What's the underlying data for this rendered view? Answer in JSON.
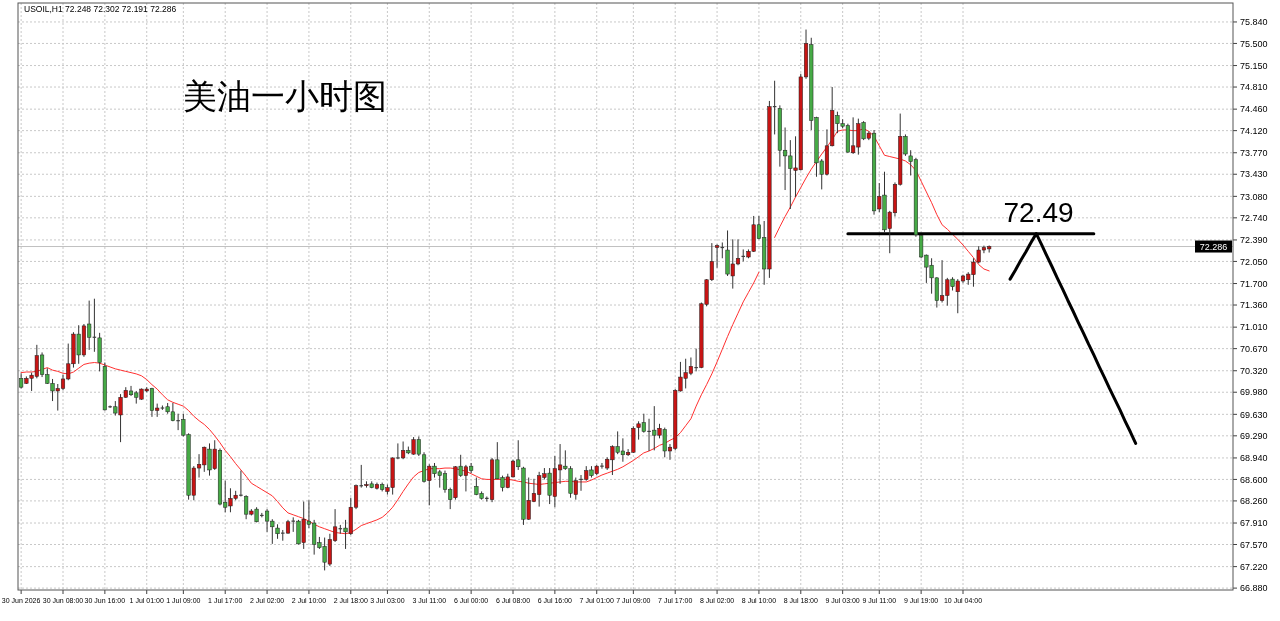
{
  "chart_data": {
    "type": "candlestick",
    "title": "美油一小时图",
    "annotations": [
      "USOIL,H1  72.248 72.302 72.191 72.286",
      {
        "text": "72.49",
        "y": 72.49
      }
    ],
    "categories": [
      "30 Jun 2026",
      null,
      null,
      null,
      null,
      null,
      null,
      null,
      "30 Jun 08:00",
      null,
      null,
      null,
      null,
      null,
      null,
      null,
      "30 Jun 16:00",
      null,
      null,
      null,
      null,
      null,
      null,
      null,
      "1 Jul 01:00",
      null,
      null,
      null,
      null,
      null,
      null,
      "1 Jul 09:00",
      null,
      null,
      null,
      null,
      null,
      null,
      null,
      "1 Jul 17:00",
      null,
      null,
      null,
      null,
      null,
      null,
      null,
      "2 Jul 02:00",
      null,
      null,
      null,
      null,
      null,
      null,
      null,
      "2 Jul 10:00",
      null,
      null,
      null,
      null,
      null,
      null,
      null,
      "2 Jul 18:00",
      null,
      null,
      null,
      null,
      null,
      null,
      "3 Jul 03:00",
      null,
      null,
      null,
      null,
      null,
      null,
      null,
      "3 Jul 11:00",
      null,
      null,
      null,
      null,
      null,
      null,
      null,
      "6 Jul 00:00",
      null,
      null,
      null,
      null,
      null,
      null,
      null,
      "6 Jul 08:00",
      null,
      null,
      null,
      null,
      null,
      null,
      null,
      "6 Jul 16:00",
      null,
      null,
      null,
      null,
      null,
      null,
      null,
      "7 Jul 01:00",
      null,
      null,
      null,
      null,
      null,
      null,
      "7 Jul 09:00",
      null,
      null,
      null,
      null,
      null,
      null,
      null,
      "7 Jul 17:00",
      null,
      null,
      null,
      null,
      null,
      null,
      null,
      "8 Jul 02:00",
      null,
      null,
      null,
      null,
      null,
      null,
      null,
      "8 Jul 10:00",
      null,
      null,
      null,
      null,
      null,
      null,
      null,
      "8 Jul 18:00",
      null,
      null,
      null,
      null,
      null,
      null,
      null,
      "9 Jul 03:00",
      null,
      null,
      null,
      null,
      null,
      null,
      "9 Jul 11:00",
      null,
      null,
      null,
      null,
      null,
      null,
      null,
      "9 Jul 19:00",
      null,
      null,
      null,
      null,
      null,
      null,
      null,
      "10 Jul 04:00",
      null,
      null,
      null,
      null,
      null,
      null,
      null,
      null,
      null,
      null,
      null,
      null,
      null,
      null,
      null,
      null,
      null,
      null,
      null,
      null,
      null,
      null,
      null,
      null,
      null,
      null,
      null,
      null,
      null,
      null,
      null,
      null,
      null,
      null,
      null,
      null,
      null,
      null,
      null,
      null,
      null,
      null,
      null,
      null,
      null,
      null,
      null,
      null,
      null,
      null,
      null
    ],
    "ohlc": [
      [
        70.2,
        70.28,
        70.04,
        70.06
      ],
      [
        70.12,
        70.23,
        70.11,
        70.2
      ],
      [
        70.2,
        70.29,
        70.0,
        70.25
      ],
      [
        70.23,
        70.73,
        70.2,
        70.56
      ],
      [
        70.57,
        70.61,
        70.22,
        70.26
      ],
      [
        70.26,
        70.36,
        70.11,
        70.12
      ],
      [
        70.12,
        70.19,
        69.84,
        70.0
      ],
      [
        70.0,
        70.11,
        69.69,
        70.04
      ],
      [
        70.04,
        70.26,
        70.01,
        70.19
      ],
      [
        70.19,
        70.75,
        70.17,
        70.43
      ],
      [
        70.43,
        70.93,
        70.37,
        70.9
      ],
      [
        70.9,
        71.04,
        70.43,
        70.57
      ],
      [
        70.57,
        71.06,
        70.54,
        71.03
      ],
      [
        71.06,
        71.43,
        70.65,
        70.85
      ],
      [
        70.85,
        71.46,
        70.62,
        70.85
      ],
      [
        70.84,
        70.92,
        70.31,
        70.45
      ],
      [
        70.39,
        70.45,
        69.69,
        69.7
      ],
      [
        69.75,
        69.77,
        69.73,
        69.75
      ],
      [
        69.75,
        69.84,
        69.61,
        69.65
      ],
      [
        69.62,
        69.95,
        69.19,
        69.9
      ],
      [
        69.9,
        70.06,
        69.89,
        70.01
      ],
      [
        70.0,
        70.08,
        69.92,
        69.94
      ],
      [
        69.97,
        70.0,
        69.8,
        69.9
      ],
      [
        69.87,
        70.04,
        69.86,
        70.03
      ],
      [
        70.0,
        70.06,
        69.98,
        70.03
      ],
      [
        70.04,
        70.05,
        69.59,
        69.69
      ],
      [
        69.69,
        69.8,
        69.59,
        69.73
      ],
      [
        69.73,
        69.77,
        69.7,
        69.73
      ],
      [
        69.75,
        69.81,
        69.64,
        69.67
      ],
      [
        69.67,
        69.81,
        69.52,
        69.53
      ],
      [
        69.53,
        69.64,
        69.38,
        69.53
      ],
      [
        69.55,
        69.64,
        69.28,
        69.3
      ],
      [
        69.31,
        69.33,
        68.28,
        68.35
      ],
      [
        68.35,
        68.81,
        68.27,
        68.78
      ],
      [
        68.78,
        69.0,
        68.63,
        68.84
      ],
      [
        68.83,
        69.12,
        68.72,
        69.11
      ],
      [
        69.08,
        69.17,
        68.66,
        68.75
      ],
      [
        68.77,
        69.22,
        68.75,
        69.08
      ],
      [
        69.06,
        69.09,
        68.19,
        68.21
      ],
      [
        68.24,
        68.58,
        68.08,
        68.16
      ],
      [
        68.18,
        68.46,
        68.08,
        68.3
      ],
      [
        68.3,
        68.42,
        68.27,
        68.35
      ],
      [
        68.35,
        68.74,
        68.33,
        68.35
      ],
      [
        68.33,
        68.35,
        67.97,
        68.05
      ],
      [
        68.05,
        68.13,
        68.03,
        68.1
      ],
      [
        68.13,
        68.16,
        67.92,
        67.93
      ],
      [
        68.03,
        68.07,
        68.0,
        68.03
      ],
      [
        68.1,
        68.13,
        67.77,
        67.94
      ],
      [
        67.94,
        67.97,
        67.58,
        67.85
      ],
      [
        67.83,
        67.89,
        67.66,
        67.74
      ],
      [
        67.75,
        67.8,
        67.63,
        67.75
      ],
      [
        67.75,
        67.96,
        67.74,
        67.93
      ],
      [
        67.94,
        68.0,
        67.77,
        67.94
      ],
      [
        67.94,
        67.96,
        67.57,
        67.58
      ],
      [
        67.6,
        68.25,
        67.5,
        67.97
      ],
      [
        67.94,
        68.27,
        67.83,
        67.89
      ],
      [
        67.91,
        67.96,
        67.41,
        67.57
      ],
      [
        67.6,
        67.69,
        67.5,
        67.52
      ],
      [
        67.54,
        67.68,
        67.16,
        67.29
      ],
      [
        67.26,
        67.74,
        67.23,
        67.65
      ],
      [
        67.63,
        68.13,
        67.61,
        67.85
      ],
      [
        67.82,
        67.88,
        67.74,
        67.82
      ],
      [
        67.83,
        67.96,
        67.5,
        67.77
      ],
      [
        67.74,
        68.31,
        67.72,
        68.16
      ],
      [
        68.16,
        68.52,
        68.13,
        68.5
      ],
      [
        68.5,
        68.83,
        68.47,
        68.5
      ],
      [
        68.5,
        68.57,
        68.47,
        68.52
      ],
      [
        68.53,
        68.57,
        68.46,
        68.47
      ],
      [
        68.46,
        68.55,
        68.44,
        68.52
      ],
      [
        68.52,
        68.55,
        68.41,
        68.44
      ],
      [
        68.41,
        68.52,
        68.36,
        68.47
      ],
      [
        68.47,
        68.95,
        68.36,
        68.94
      ],
      [
        68.94,
        69.17,
        68.92,
        68.94
      ],
      [
        68.94,
        69.2,
        68.92,
        69.06
      ],
      [
        69.06,
        69.12,
        69.0,
        69.02
      ],
      [
        69.0,
        69.27,
        68.99,
        69.23
      ],
      [
        69.23,
        69.28,
        68.97,
        69.0
      ],
      [
        68.99,
        69.03,
        68.55,
        68.57
      ],
      [
        68.58,
        68.84,
        68.19,
        68.81
      ],
      [
        68.81,
        68.86,
        68.63,
        68.69
      ],
      [
        68.72,
        68.75,
        68.47,
        68.66
      ],
      [
        68.69,
        68.74,
        68.39,
        68.44
      ],
      [
        68.44,
        68.47,
        68.13,
        68.28
      ],
      [
        68.31,
        68.81,
        68.28,
        68.8
      ],
      [
        68.81,
        68.99,
        68.64,
        68.66
      ],
      [
        68.66,
        68.83,
        68.41,
        68.8
      ],
      [
        68.81,
        68.86,
        68.7,
        68.74
      ],
      [
        68.49,
        68.63,
        68.35,
        68.36
      ],
      [
        68.38,
        68.41,
        68.28,
        68.3
      ],
      [
        68.3,
        68.33,
        68.25,
        68.3
      ],
      [
        68.28,
        68.94,
        68.24,
        68.91
      ],
      [
        68.91,
        69.19,
        68.6,
        68.61
      ],
      [
        68.63,
        68.66,
        68.41,
        68.47
      ],
      [
        68.47,
        68.69,
        68.46,
        68.64
      ],
      [
        68.64,
        68.91,
        68.63,
        68.89
      ],
      [
        68.91,
        69.22,
        68.75,
        68.8
      ],
      [
        68.78,
        68.8,
        67.88,
        67.97
      ],
      [
        67.97,
        68.63,
        67.96,
        68.27
      ],
      [
        68.25,
        68.61,
        68.24,
        68.38
      ],
      [
        68.36,
        68.72,
        68.17,
        68.66
      ],
      [
        68.63,
        68.78,
        68.6,
        68.69
      ],
      [
        68.7,
        68.78,
        68.21,
        68.35
      ],
      [
        68.33,
        68.97,
        68.16,
        68.77
      ],
      [
        68.75,
        69.16,
        68.53,
        68.83
      ],
      [
        68.81,
        69.06,
        68.75,
        68.77
      ],
      [
        68.77,
        68.81,
        68.31,
        68.38
      ],
      [
        68.36,
        68.63,
        68.28,
        68.58
      ],
      [
        68.6,
        68.67,
        68.42,
        68.6
      ],
      [
        68.6,
        68.81,
        68.58,
        68.74
      ],
      [
        68.75,
        68.81,
        68.63,
        68.66
      ],
      [
        68.69,
        68.83,
        68.67,
        68.81
      ],
      [
        68.81,
        68.86,
        68.77,
        68.81
      ],
      [
        68.78,
        68.95,
        68.75,
        68.92
      ],
      [
        68.91,
        69.14,
        68.67,
        69.12
      ],
      [
        69.12,
        69.36,
        69.0,
        69.03
      ],
      [
        69.05,
        69.25,
        68.88,
        68.99
      ],
      [
        68.99,
        69.08,
        68.97,
        69.03
      ],
      [
        69.03,
        69.44,
        69.02,
        69.41
      ],
      [
        69.42,
        69.52,
        69.23,
        69.48
      ],
      [
        69.5,
        69.64,
        69.34,
        69.36
      ],
      [
        69.36,
        69.56,
        69.05,
        69.36
      ],
      [
        69.38,
        69.76,
        69.06,
        69.3
      ],
      [
        69.3,
        69.48,
        69.25,
        69.41
      ],
      [
        69.39,
        69.42,
        68.95,
        69.05
      ],
      [
        69.05,
        69.16,
        68.91,
        69.11
      ],
      [
        69.09,
        70.03,
        69.06,
        70.01
      ],
      [
        70.0,
        70.46,
        69.99,
        70.22
      ],
      [
        70.2,
        70.51,
        70.04,
        70.29
      ],
      [
        70.28,
        70.53,
        70.25,
        70.39
      ],
      [
        70.37,
        70.67,
        70.31,
        70.37
      ],
      [
        70.37,
        71.4,
        70.36,
        71.38
      ],
      [
        71.37,
        71.77,
        71.34,
        71.76
      ],
      [
        71.76,
        72.34,
        71.74,
        72.05
      ],
      [
        72.27,
        72.32,
        71.95,
        72.3
      ],
      [
        72.27,
        72.35,
        72.1,
        72.27
      ],
      [
        72.23,
        72.54,
        71.82,
        71.85
      ],
      [
        71.82,
        72.4,
        71.62,
        72.01
      ],
      [
        72.01,
        72.4,
        71.99,
        72.1
      ],
      [
        72.13,
        72.24,
        72.05,
        72.13
      ],
      [
        72.12,
        72.24,
        72.1,
        72.21
      ],
      [
        72.21,
        72.77,
        72.2,
        72.63
      ],
      [
        72.63,
        72.77,
        72.4,
        72.41
      ],
      [
        72.43,
        72.69,
        71.68,
        71.93
      ],
      [
        71.93,
        74.59,
        71.79,
        74.5
      ],
      [
        74.5,
        74.91,
        74.06,
        74.5
      ],
      [
        74.47,
        74.52,
        73.55,
        73.81
      ],
      [
        73.81,
        74.17,
        73.18,
        73.72
      ],
      [
        73.72,
        73.97,
        72.88,
        73.52
      ],
      [
        73.49,
        74.03,
        73.07,
        73.53
      ],
      [
        73.5,
        75.02,
        73.49,
        74.97
      ],
      [
        74.97,
        75.72,
        74.94,
        75.5
      ],
      [
        75.48,
        75.59,
        74.13,
        74.28
      ],
      [
        74.33,
        74.34,
        73.39,
        73.61
      ],
      [
        73.64,
        73.67,
        73.19,
        73.43
      ],
      [
        73.43,
        74.14,
        73.41,
        73.88
      ],
      [
        73.88,
        74.81,
        73.87,
        74.44
      ],
      [
        74.36,
        74.42,
        74.08,
        74.23
      ],
      [
        74.23,
        74.3,
        74.16,
        74.19
      ],
      [
        74.2,
        74.23,
        73.77,
        73.78
      ],
      [
        73.77,
        74.33,
        73.75,
        73.88
      ],
      [
        73.86,
        74.31,
        73.74,
        74.23
      ],
      [
        74.25,
        74.27,
        73.97,
        73.99
      ],
      [
        74.0,
        74.11,
        73.97,
        74.08
      ],
      [
        74.08,
        74.13,
        72.79,
        72.85
      ],
      [
        72.88,
        73.29,
        72.83,
        73.08
      ],
      [
        73.1,
        73.47,
        72.51,
        72.55
      ],
      [
        72.57,
        72.85,
        72.18,
        72.83
      ],
      [
        72.82,
        73.3,
        72.76,
        73.27
      ],
      [
        73.27,
        74.39,
        73.25,
        74.03
      ],
      [
        74.03,
        74.06,
        73.72,
        73.75
      ],
      [
        73.72,
        73.81,
        73.41,
        73.63
      ],
      [
        73.66,
        73.69,
        72.44,
        72.47
      ],
      [
        72.46,
        72.47,
        72.1,
        72.12
      ],
      [
        72.15,
        72.16,
        71.71,
        71.96
      ],
      [
        71.99,
        72.1,
        71.54,
        71.79
      ],
      [
        71.79,
        71.8,
        71.32,
        71.43
      ],
      [
        71.43,
        72.07,
        71.4,
        71.51
      ],
      [
        71.51,
        71.79,
        71.35,
        71.76
      ],
      [
        71.77,
        71.8,
        71.59,
        71.65
      ],
      [
        71.57,
        71.77,
        71.23,
        71.74
      ],
      [
        71.74,
        71.84,
        71.71,
        71.82
      ],
      [
        71.76,
        71.88,
        71.68,
        71.85
      ],
      [
        71.84,
        72.1,
        71.65,
        72.04
      ],
      [
        72.04,
        72.29,
        72.02,
        72.23
      ],
      [
        72.23,
        72.3,
        72.18,
        72.27
      ],
      [
        72.248,
        72.302,
        72.191,
        72.286
      ],
      null,
      null,
      null,
      null,
      null,
      null,
      null,
      null,
      null,
      null,
      null,
      null,
      null,
      null,
      null,
      null,
      null,
      null,
      null,
      null,
      null,
      null,
      null,
      null,
      null,
      null,
      null,
      null,
      null,
      null,
      null,
      null,
      null,
      null,
      null,
      null,
      null,
      null,
      null,
      null,
      null,
      null,
      null,
      null,
      null,
      null
    ],
    "colors": [
      "#46aa46",
      "#c81414",
      "#c81414",
      "#c81414",
      "#46aa46",
      "#46aa46",
      "#46aa46",
      "#c81414",
      "#c81414",
      "#c81414",
      "#c81414",
      "#46aa46",
      "#c81414",
      "#46aa46",
      "#404040",
      "#46aa46",
      "#46aa46",
      "#404040",
      "#46aa46",
      "#c81414",
      "#c81414",
      "#46aa46",
      "#46aa46",
      "#c81414",
      "#c81414",
      "#46aa46",
      "#c81414",
      "#404040",
      "#46aa46",
      "#46aa46",
      "#404040",
      "#46aa46",
      "#46aa46",
      "#c81414",
      "#c81414",
      "#c81414",
      "#46aa46",
      "#c81414",
      "#46aa46",
      "#46aa46",
      "#c81414",
      "#c81414",
      "#404040",
      "#46aa46",
      "#c81414",
      "#46aa46",
      "#404040",
      "#46aa46",
      "#46aa46",
      "#46aa46",
      "#404040",
      "#c81414",
      "#404040",
      "#46aa46",
      "#c81414",
      "#46aa46",
      "#46aa46",
      "#46aa46",
      "#46aa46",
      "#c81414",
      "#c81414",
      "#404040",
      "#46aa46",
      "#c81414",
      "#c81414",
      "#404040",
      "#c81414",
      "#46aa46",
      "#c81414",
      "#46aa46",
      "#c81414",
      "#c81414",
      "#404040",
      "#c81414",
      "#46aa46",
      "#c81414",
      "#46aa46",
      "#46aa46",
      "#c81414",
      "#46aa46",
      "#46aa46",
      "#46aa46",
      "#46aa46",
      "#c81414",
      "#46aa46",
      "#c81414",
      "#46aa46",
      "#46aa46",
      "#46aa46",
      "#404040",
      "#c81414",
      "#46aa46",
      "#46aa46",
      "#c81414",
      "#c81414",
      "#46aa46",
      "#46aa46",
      "#c81414",
      "#c81414",
      "#c81414",
      "#c81414",
      "#46aa46",
      "#c81414",
      "#c81414",
      "#46aa46",
      "#46aa46",
      "#c81414",
      "#404040",
      "#c81414",
      "#46aa46",
      "#c81414",
      "#404040",
      "#c81414",
      "#c81414",
      "#46aa46",
      "#46aa46",
      "#c81414",
      "#c81414",
      "#c81414",
      "#46aa46",
      "#404040",
      "#46aa46",
      "#c81414",
      "#46aa46",
      "#c81414",
      "#c81414",
      "#c81414",
      "#c81414",
      "#c81414",
      "#404040",
      "#c81414",
      "#c81414",
      "#c81414",
      "#c81414",
      "#404040",
      "#46aa46",
      "#c81414",
      "#c81414",
      "#404040",
      "#c81414",
      "#c81414",
      "#46aa46",
      "#46aa46",
      "#c81414",
      "#404040",
      "#46aa46",
      "#46aa46",
      "#46aa46",
      "#c81414",
      "#c81414",
      "#c81414",
      "#46aa46",
      "#46aa46",
      "#46aa46",
      "#c81414",
      "#c81414",
      "#46aa46",
      "#46aa46",
      "#46aa46",
      "#c81414",
      "#c81414",
      "#46aa46",
      "#c81414",
      "#46aa46",
      "#c81414",
      "#46aa46",
      "#c81414",
      "#c81414",
      "#c81414",
      "#46aa46",
      "#46aa46",
      "#46aa46",
      "#46aa46",
      "#46aa46",
      "#46aa46",
      "#46aa46",
      "#c81414",
      "#c81414",
      "#46aa46",
      "#c81414",
      "#c81414",
      "#c81414",
      "#c81414",
      "#c81414",
      "#c81414",
      "#c81414",
      null,
      null,
      null,
      null,
      null,
      null,
      null,
      null,
      null,
      null,
      null,
      null,
      null,
      null,
      null,
      null,
      null,
      null,
      null,
      null,
      null,
      null,
      null,
      null,
      null,
      null,
      null,
      null,
      null,
      null,
      null,
      null,
      null,
      null,
      null,
      null,
      null,
      null,
      null,
      null,
      null,
      null,
      null,
      null,
      null,
      null
    ],
    "series": [
      {
        "type": "line",
        "color": "#ff3030",
        "values": [
          70.29,
          70.3,
          70.3,
          70.31,
          70.34,
          70.37,
          70.33,
          70.31,
          70.28,
          70.27,
          70.3,
          70.36,
          70.42,
          70.44,
          70.45,
          70.44,
          70.41,
          70.38,
          70.35,
          70.33,
          70.31,
          70.29,
          70.27,
          70.24,
          70.18,
          70.1,
          70.03,
          69.94,
          69.86,
          69.82,
          69.79,
          69.76,
          69.69,
          69.6,
          69.53,
          69.47,
          69.39,
          69.29,
          69.18,
          69.06,
          68.96,
          68.85,
          68.75,
          68.65,
          68.54,
          68.49,
          68.44,
          68.39,
          68.34,
          68.25,
          68.15,
          68.07,
          68.04,
          68.01,
          67.98,
          67.94,
          67.89,
          67.85,
          67.82,
          67.79,
          67.76,
          67.75,
          67.74,
          67.76,
          67.81,
          67.87,
          67.9,
          67.93,
          67.96,
          68.0,
          68.07,
          68.16,
          68.28,
          68.41,
          68.53,
          68.64,
          68.71,
          68.74,
          68.77,
          68.77,
          68.77,
          68.78,
          68.78,
          68.77,
          68.75,
          68.73,
          68.69,
          68.65,
          68.61,
          68.6,
          68.6,
          68.6,
          68.6,
          68.6,
          68.59,
          68.57,
          68.56,
          68.54,
          68.53,
          68.52,
          68.53,
          68.54,
          68.55,
          68.56,
          68.57,
          68.57,
          68.56,
          68.56,
          68.56,
          68.59,
          68.63,
          68.67,
          68.7,
          68.73,
          68.76,
          68.8,
          68.85,
          68.9,
          68.96,
          69.02,
          69.05,
          69.09,
          69.14,
          69.17,
          69.22,
          69.26,
          69.34,
          69.45,
          69.56,
          69.76,
          69.94,
          70.1,
          70.27,
          70.46,
          70.66,
          70.86,
          71.05,
          71.23,
          71.41,
          71.56,
          71.71,
          71.88,
          null,
          null,
          72.43,
          72.6,
          72.76,
          72.91,
          73.07,
          73.22,
          73.37,
          73.51,
          73.63,
          73.75,
          73.86,
          73.98,
          74.11,
          74.13,
          74.13,
          74.12,
          74.12,
          74.15,
          74.11,
          74.03,
          73.88,
          73.73,
          73.71,
          73.69,
          73.67,
          73.64,
          73.58,
          73.49,
          73.32,
          73.15,
          72.98,
          72.79,
          72.63,
          72.56,
          72.48,
          72.4,
          72.31,
          72.21,
          72.11,
          72.0,
          71.93,
          71.9,
          null,
          null,
          null,
          null,
          null,
          null,
          null,
          null,
          null,
          null,
          null,
          null,
          null,
          null,
          null,
          null,
          null,
          null,
          null,
          null,
          null,
          null,
          null,
          null,
          null,
          null,
          null,
          null,
          null,
          null,
          null,
          null,
          null,
          null,
          null,
          null,
          null,
          null,
          null,
          null,
          null,
          null,
          null,
          null,
          null,
          null
        ]
      },
      {
        "type": "line",
        "color": "#000000",
        "values": [
          null,
          null,
          null,
          null,
          null,
          null,
          null,
          null,
          null,
          null,
          null,
          null,
          null,
          null,
          null,
          null,
          null,
          null,
          null,
          null,
          null,
          null,
          null,
          null,
          null,
          null,
          null,
          null,
          null,
          null,
          null,
          null,
          null,
          null,
          null,
          null,
          null,
          null,
          null,
          null,
          null,
          null,
          null,
          null,
          null,
          null,
          null,
          null,
          null,
          null,
          null,
          null,
          null,
          null,
          null,
          null,
          null,
          null,
          null,
          null,
          null,
          null,
          null,
          null,
          null,
          null,
          null,
          null,
          null,
          null,
          null,
          null,
          null,
          null,
          null,
          null,
          null,
          null,
          null,
          null,
          null,
          null,
          null,
          null,
          null,
          null,
          null,
          null,
          null,
          null,
          null,
          null,
          null,
          null,
          null,
          null,
          null,
          null,
          null,
          null,
          null,
          null,
          null,
          null,
          null,
          null,
          null,
          null,
          null,
          null,
          null,
          null,
          null,
          null,
          null,
          null,
          null,
          null,
          null,
          null,
          null,
          null,
          null,
          null,
          null,
          null,
          null,
          null,
          null,
          null,
          null,
          null,
          null,
          null,
          null,
          null,
          null,
          null,
          null,
          null,
          null,
          null,
          null,
          null,
          null,
          null,
          null,
          null,
          null,
          null,
          null,
          null,
          null,
          null,
          null,
          null,
          null,
          null,
          72.49,
          72.49,
          72.49,
          72.49,
          72.49,
          72.49,
          72.49,
          72.49,
          72.49,
          72.49,
          72.49,
          72.49,
          72.49,
          72.49,
          72.49,
          72.49,
          72.49,
          72.49,
          72.49,
          72.49,
          72.49,
          72.49,
          72.49,
          72.49,
          72.49,
          72.49,
          72.49,
          72.49,
          72.49,
          72.49,
          72.49,
          72.49,
          72.49,
          72.49,
          72.49,
          72.49,
          72.49,
          72.49,
          72.49,
          72.49,
          72.49,
          72.49,
          72.49,
          72.49,
          72.49,
          72.49,
          72.49,
          72.49,
          null,
          null,
          null,
          null,
          null,
          null,
          null,
          null,
          null,
          null,
          null,
          null,
          null,
          null,
          null,
          null,
          null,
          null,
          null,
          null,
          null,
          null,
          null,
          null,
          null,
          null
        ]
      },
      {
        "type": "line",
        "color": "#000000",
        "values": [
          null,
          null,
          null,
          null,
          null,
          null,
          null,
          null,
          null,
          null,
          null,
          null,
          null,
          null,
          null,
          null,
          null,
          null,
          null,
          null,
          null,
          null,
          null,
          null,
          null,
          null,
          null,
          null,
          null,
          null,
          null,
          null,
          null,
          null,
          null,
          null,
          null,
          null,
          null,
          null,
          null,
          null,
          null,
          null,
          null,
          null,
          null,
          null,
          null,
          null,
          null,
          null,
          null,
          null,
          null,
          null,
          null,
          null,
          null,
          null,
          null,
          null,
          null,
          null,
          null,
          null,
          null,
          null,
          null,
          null,
          null,
          null,
          null,
          null,
          null,
          null,
          null,
          null,
          null,
          null,
          null,
          null,
          null,
          null,
          null,
          null,
          null,
          null,
          null,
          null,
          null,
          null,
          null,
          null,
          null,
          null,
          null,
          null,
          null,
          null,
          null,
          null,
          null,
          null,
          null,
          null,
          null,
          null,
          null,
          null,
          null,
          null,
          null,
          null,
          null,
          null,
          null,
          null,
          null,
          null,
          null,
          null,
          null,
          null,
          null,
          null,
          null,
          null,
          null,
          null,
          null,
          null,
          null,
          null,
          null,
          null,
          null,
          null,
          null,
          null,
          null,
          null,
          null,
          null,
          null,
          null,
          null,
          null,
          null,
          null,
          null,
          null,
          null,
          null,
          null,
          null,
          null,
          null,
          null,
          null,
          null,
          null,
          null,
          null,
          null,
          null,
          null,
          null,
          null,
          null,
          null,
          null,
          null,
          null,
          null,
          null,
          null,
          null,
          null,
          null,
          null,
          null,
          null,
          null,
          null,
          null,
          null,
          null,
          null,
          71.77,
          71.91,
          72.06,
          72.2,
          72.35,
          72.49,
          72.32,
          72.14,
          71.97,
          71.79,
          71.62,
          71.44,
          71.27,
          71.09,
          70.92,
          70.74,
          70.57,
          70.39,
          70.22,
          70.04,
          69.87,
          69.7,
          69.52,
          69.35,
          69.17,
          null,
          null,
          null,
          null,
          null,
          null,
          null,
          null,
          null,
          null,
          null,
          null,
          null,
          null,
          null,
          null,
          null,
          null
        ]
      }
    ],
    "ylim": [
      66.85,
      76.14
    ],
    "yticks": [
      {
        "value": 66.88,
        "label": "66.880"
      },
      {
        "value": 67.22,
        "label": "67.220"
      },
      {
        "value": 67.57,
        "label": "67.570"
      },
      {
        "value": 67.91,
        "label": "67.910"
      },
      {
        "value": 68.26,
        "label": "68.260"
      },
      {
        "value": 68.6,
        "label": "68.600"
      },
      {
        "value": 68.94,
        "label": "68.940"
      },
      {
        "value": 69.29,
        "label": "69.290"
      },
      {
        "value": 69.63,
        "label": "69.630"
      },
      {
        "value": 69.98,
        "label": "69.980"
      },
      {
        "value": 70.32,
        "label": "70.320"
      },
      {
        "value": 70.67,
        "label": "70.670"
      },
      {
        "value": 71.01,
        "label": "71.010"
      },
      {
        "value": 71.36,
        "label": "71.360"
      },
      {
        "value": 71.7,
        "label": "71.700"
      },
      {
        "value": 72.05,
        "label": "72.050"
      },
      {
        "value": 72.39,
        "label": "72.390"
      },
      {
        "value": 72.74,
        "label": "72.740"
      },
      {
        "value": 73.08,
        "label": "73.080"
      },
      {
        "value": 73.43,
        "label": "73.430"
      },
      {
        "value": 73.77,
        "label": "73.770"
      },
      {
        "value": 74.12,
        "label": "74.120"
      },
      {
        "value": 74.46,
        "label": "74.460"
      },
      {
        "value": 74.81,
        "label": "74.810"
      },
      {
        "value": 75.15,
        "label": "75.150"
      },
      {
        "value": 75.5,
        "label": "75.500"
      },
      {
        "value": 75.84,
        "label": "75.840"
      }
    ],
    "ref_lines": [
      {
        "axis": "y",
        "value": 72.286,
        "label": "72.286",
        "color": "#c0c0c0"
      }
    ],
    "grid": true
  }
}
